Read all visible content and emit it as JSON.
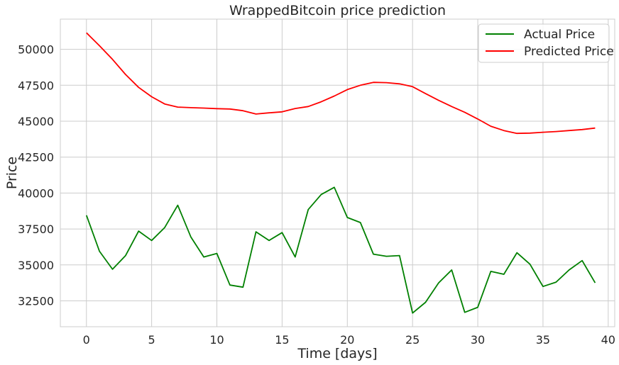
{
  "chart_data": {
    "type": "line",
    "title": "WrappedBitcoin price prediction",
    "xlabel": "Time [days]",
    "ylabel": "Price",
    "xlim": [
      -2,
      40.5
    ],
    "ylim": [
      30700,
      52100
    ],
    "x_ticks": [
      0,
      5,
      10,
      15,
      20,
      25,
      30,
      35,
      40
    ],
    "y_ticks": [
      32500,
      35000,
      37500,
      40000,
      42500,
      45000,
      47500,
      50000
    ],
    "grid": true,
    "legend_position": "top-right",
    "x": [
      0,
      1,
      2,
      3,
      4,
      5,
      6,
      7,
      8,
      9,
      10,
      11,
      12,
      13,
      14,
      15,
      16,
      17,
      18,
      19,
      20,
      21,
      22,
      23,
      24,
      25,
      26,
      27,
      28,
      29,
      30,
      31,
      32,
      33,
      34,
      35,
      36,
      37,
      38,
      39
    ],
    "series": [
      {
        "name": "Actual Price",
        "color": "#008000",
        "values": [
          38450,
          35950,
          34700,
          35650,
          37350,
          36700,
          37600,
          39150,
          36950,
          35550,
          35800,
          33600,
          33450,
          37300,
          36700,
          37250,
          35550,
          38850,
          39900,
          40400,
          38300,
          37950,
          35750,
          35600,
          35650,
          31650,
          32400,
          33750,
          34650,
          31700,
          32050,
          34550,
          34350,
          35850,
          35050,
          33500,
          33800,
          34650,
          35300,
          33750
        ]
      },
      {
        "name": "Predicted Price",
        "color": "#ff0000",
        "values": [
          51150,
          50250,
          49300,
          48250,
          47350,
          46700,
          46200,
          45980,
          45940,
          45910,
          45870,
          45850,
          45730,
          45500,
          45580,
          45650,
          45880,
          46020,
          46350,
          46750,
          47200,
          47500,
          47700,
          47680,
          47600,
          47400,
          46920,
          46450,
          46020,
          45620,
          45150,
          44650,
          44350,
          44150,
          44170,
          44230,
          44280,
          44350,
          44420,
          44520
        ]
      }
    ]
  }
}
